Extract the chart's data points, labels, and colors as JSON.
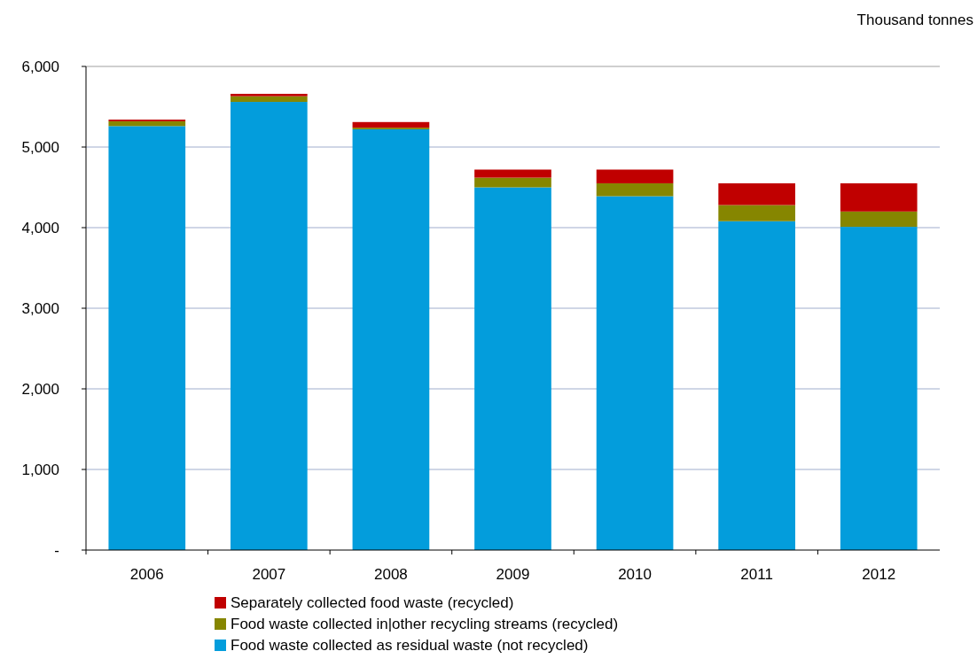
{
  "chart_data": {
    "type": "bar",
    "stacked": true,
    "ylabel": "Thousand tonnes",
    "categories": [
      "2006",
      "2007",
      "2008",
      "2009",
      "2010",
      "2011",
      "2012"
    ],
    "series": [
      {
        "name": "Food waste collected as residual waste (not recycled)",
        "color": "#039ddc",
        "values": [
          5260,
          5560,
          5220,
          4500,
          4390,
          4080,
          4010
        ]
      },
      {
        "name": "Food waste collected in|other recycling streams (recycled)",
        "color": "#868600",
        "values": [
          60,
          70,
          20,
          120,
          160,
          200,
          190
        ]
      },
      {
        "name": "Separately collected food waste (recycled)",
        "color": "#c00000",
        "values": [
          20,
          30,
          70,
          100,
          170,
          270,
          350
        ]
      }
    ],
    "ylim": [
      0,
      6000
    ],
    "yticks": [
      {
        "value": 0,
        "label": "-"
      },
      {
        "value": 1000,
        "label": "1,000"
      },
      {
        "value": 2000,
        "label": "2,000"
      },
      {
        "value": 3000,
        "label": "3,000"
      },
      {
        "value": 4000,
        "label": "4,000"
      },
      {
        "value": 5000,
        "label": "5,000"
      },
      {
        "value": 6000,
        "label": "6,000"
      }
    ],
    "grid": "y",
    "legend": "bottom"
  }
}
